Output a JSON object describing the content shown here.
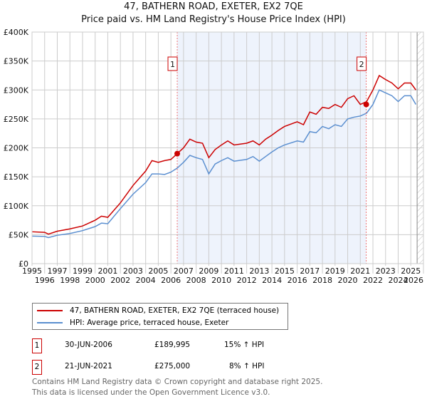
{
  "chart_data": {
    "type": "line",
    "title": "47, BATHERN ROAD, EXETER, EX2 7QE",
    "subtitle": "Price paid vs. HM Land Registry's House Price Index (HPI)",
    "xlim": [
      1995,
      2026
    ],
    "ylim": [
      0,
      400000
    ],
    "x_ticks": [
      "1995",
      "1996",
      "1997",
      "1998",
      "1999",
      "2000",
      "2001",
      "2002",
      "2003",
      "2004",
      "2005",
      "2006",
      "2007",
      "2008",
      "2009",
      "2010",
      "2011",
      "2012",
      "2013",
      "2014",
      "2015",
      "2016",
      "2017",
      "2018",
      "2019",
      "2020",
      "2021",
      "2022",
      "2023",
      "2024",
      "2025",
      "2026"
    ],
    "y_ticks": [
      {
        "v": 0,
        "label": "£0"
      },
      {
        "v": 50000,
        "label": "£50K"
      },
      {
        "v": 100000,
        "label": "£100K"
      },
      {
        "v": 150000,
        "label": "£150K"
      },
      {
        "v": 200000,
        "label": "£200K"
      },
      {
        "v": 250000,
        "label": "£250K"
      },
      {
        "v": 300000,
        "label": "£300K"
      },
      {
        "v": 350000,
        "label": "£350K"
      },
      {
        "v": 400000,
        "label": "£400K"
      }
    ],
    "grid": true,
    "shaded_range": [
      2006.5,
      2021.47
    ],
    "forecast_from": 2025.5,
    "series": [
      {
        "name": "47, BATHERN ROAD, EXETER, EX2 7QE (terraced house)",
        "color": "#cc0000",
        "x": [
          1995,
          1996,
          1996.3,
          1997,
          1998,
          1999,
          2000,
          2000.5,
          2001,
          2002,
          2003,
          2004,
          2004.5,
          2005,
          2005.5,
          2006,
          2006.5,
          2007,
          2007.5,
          2008,
          2008.5,
          2009,
          2009.5,
          2010,
          2010.5,
          2011,
          2012,
          2012.5,
          2013,
          2013.5,
          2014,
          2014.5,
          2015,
          2016,
          2016.5,
          2017,
          2017.5,
          2018,
          2018.5,
          2019,
          2019.5,
          2020,
          2020.5,
          2021,
          2021.5,
          2022,
          2022.5,
          2023,
          2023.5,
          2024,
          2024.5,
          2025,
          2025.4
        ],
        "y": [
          55000,
          54000,
          51000,
          56000,
          60000,
          65000,
          75000,
          82000,
          80000,
          105000,
          135000,
          160000,
          178000,
          175000,
          178000,
          180000,
          190000,
          200000,
          215000,
          210000,
          208000,
          183000,
          197000,
          205000,
          212000,
          205000,
          208000,
          212000,
          205000,
          215000,
          222000,
          230000,
          237000,
          245000,
          240000,
          262000,
          258000,
          270000,
          268000,
          275000,
          270000,
          285000,
          290000,
          275000,
          280000,
          300000,
          325000,
          318000,
          312000,
          302000,
          312000,
          312000,
          300000
        ]
      },
      {
        "name": "HPI: Average price, terraced house, Exeter",
        "color": "#5b8fd0",
        "x": [
          1995,
          1996,
          1996.3,
          1997,
          1998,
          1999,
          2000,
          2000.5,
          2001,
          2002,
          2003,
          2004,
          2004.5,
          2005,
          2005.5,
          2006,
          2006.5,
          2007,
          2007.5,
          2008,
          2008.5,
          2009,
          2009.5,
          2010,
          2010.5,
          2011,
          2012,
          2012.5,
          2013,
          2013.5,
          2014,
          2014.5,
          2015,
          2016,
          2016.5,
          2017,
          2017.5,
          2018,
          2018.5,
          2019,
          2019.5,
          2020,
          2020.5,
          2021,
          2021.5,
          2022,
          2022.5,
          2023,
          2023.5,
          2024,
          2024.5,
          2025,
          2025.4
        ],
        "y": [
          47500,
          47000,
          45000,
          49000,
          52000,
          57000,
          64000,
          70000,
          69000,
          95000,
          120000,
          140000,
          155000,
          155000,
          154000,
          158000,
          165000,
          175000,
          187000,
          183000,
          180000,
          155000,
          172000,
          178000,
          183000,
          177000,
          180000,
          185000,
          177000,
          185000,
          193000,
          200000,
          205000,
          212000,
          210000,
          228000,
          226000,
          237000,
          233000,
          240000,
          237000,
          250000,
          253000,
          255000,
          260000,
          275000,
          300000,
          295000,
          290000,
          280000,
          290000,
          290000,
          275000
        ]
      }
    ],
    "sales": [
      {
        "id": "1",
        "x": 2006.5,
        "y": 189995,
        "date": "30-JUN-2006",
        "price": "£189,995",
        "hpi": "15% ↑ HPI"
      },
      {
        "id": "2",
        "x": 2021.47,
        "y": 275000,
        "date": "21-JUN-2021",
        "price": "£275,000",
        "hpi": "8% ↑ HPI"
      }
    ]
  },
  "footer": [
    "Contains HM Land Registry data © Crown copyright and database right 2025.",
    "This data is licensed under the Open Government Licence v3.0."
  ]
}
